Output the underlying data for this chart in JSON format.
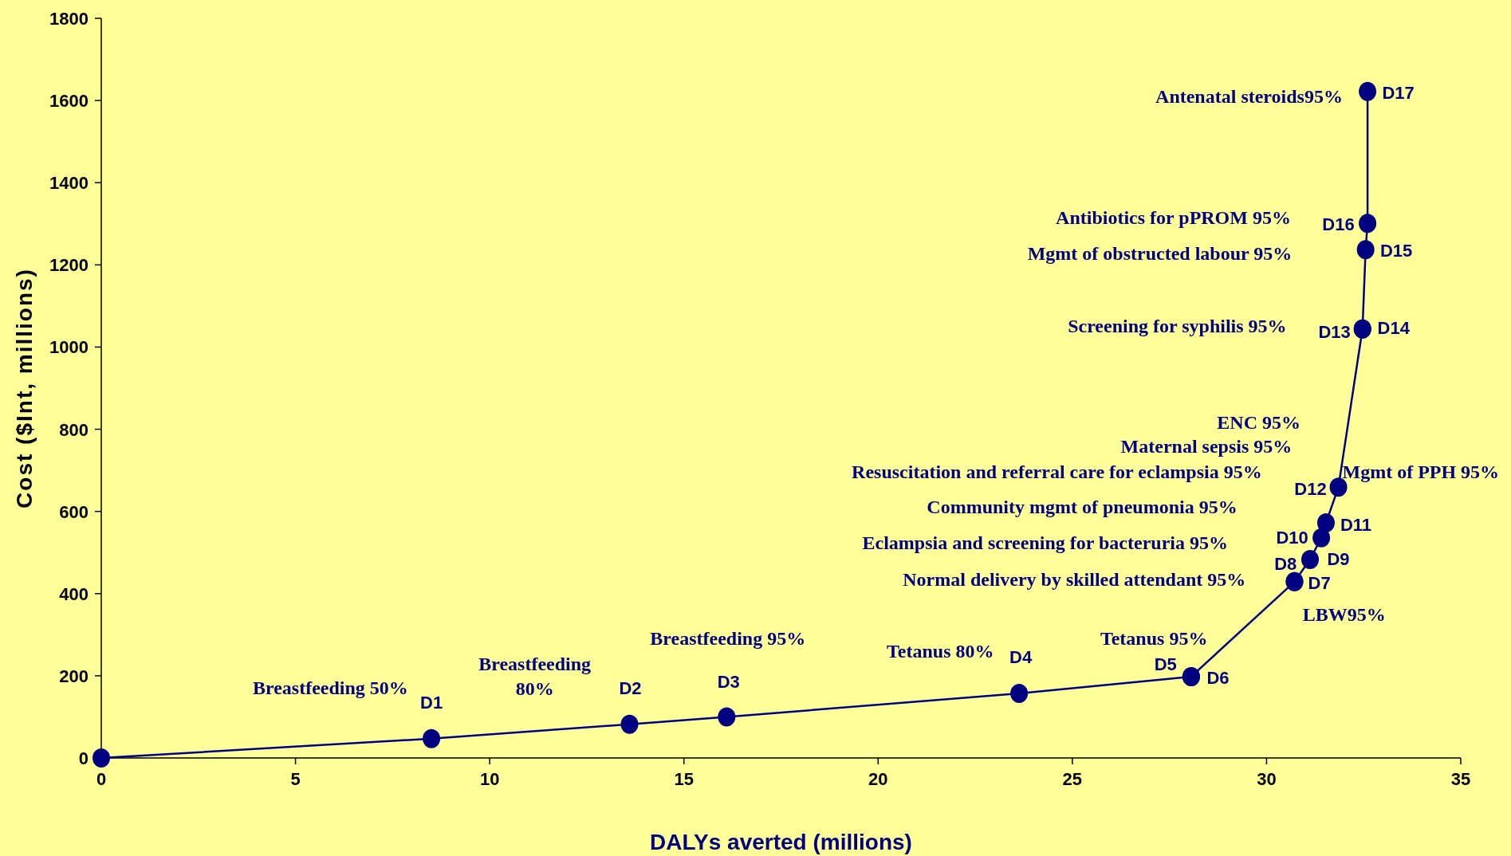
{
  "chart_data": {
    "type": "line",
    "xlabel": "DALYs averted (millions)",
    "ylabel": "Cost ($Int, millions)",
    "marker": "circle",
    "grid": false,
    "xlim": [
      0,
      35
    ],
    "xticks": [
      0,
      5,
      10,
      15,
      20,
      25,
      30,
      35
    ],
    "ylim": [
      0,
      1800
    ],
    "yticks": [
      0,
      200,
      400,
      600,
      800,
      1000,
      1200,
      1400,
      1600,
      1800
    ],
    "series": [
      {
        "color": "#000080",
        "x": [
          0,
          8.5,
          13.6,
          16.1,
          23.63,
          28.06,
          28.06,
          30.72,
          30.72,
          31.12,
          31.41,
          31.53,
          31.85,
          32.47,
          32.47,
          32.55,
          32.6,
          32.6
        ],
        "values": [
          0,
          47,
          82,
          100,
          157,
          198,
          198,
          429,
          429,
          483,
          536,
          572,
          659,
          1044,
          1044,
          1237,
          1301,
          1622
        ],
        "value_labels": [
          null,
          "D1",
          "D2",
          "D3",
          "D4",
          "D5",
          "D6",
          "D7",
          "D8",
          "D9",
          "D10",
          "D11",
          "D12",
          "D13",
          "D14",
          "D15",
          "D16",
          "D17"
        ]
      }
    ],
    "annotations": [
      "Breastfeeding 50%",
      "Breastfeeding\n80%",
      "Breastfeeding 95%",
      "Tetanus 80%",
      "Tetanus 95%",
      "LBW95%",
      "Normal delivery by skilled attendant 95%",
      "Eclampsia and screening for bacteruria 95%",
      "Community mgmt of pneumonia 95%",
      "Resuscitation and referral care for eclampsia 95%",
      "Mgmt of PPH 95%",
      "Maternal sepsis 95%",
      "ENC 95%",
      "Screening for syphilis 95%",
      "Mgmt of obstructed labour 95%",
      "Antibiotics for pPROM 95%",
      "Antenatal steroids95%"
    ]
  }
}
